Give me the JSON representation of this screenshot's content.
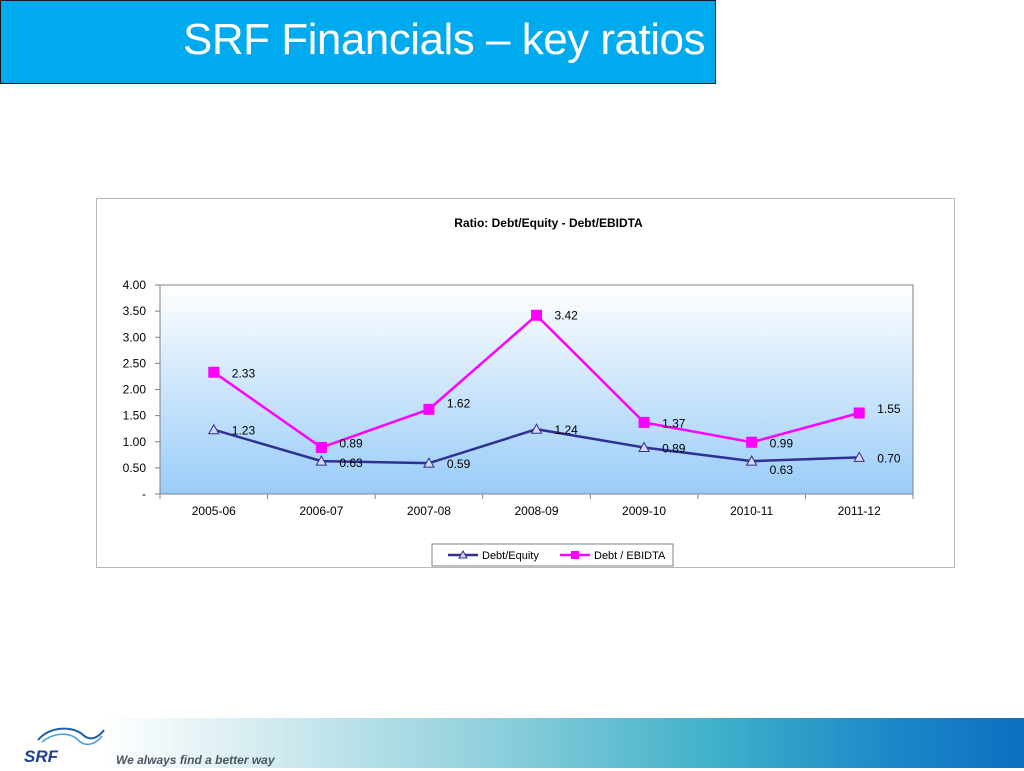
{
  "slide": {
    "title": "SRF Financials – key ratios",
    "tagline": "We always find a better way",
    "logo_text": "SRF"
  },
  "chart_data": {
    "type": "line",
    "title": "Ratio: Debt/Equity - Debt/EBIDTA",
    "xlabel": "",
    "ylabel": "",
    "categories": [
      "2005-06",
      "2006-07",
      "2007-08",
      "2008-09",
      "2009-10",
      "2010-11",
      "2011-12"
    ],
    "series": [
      {
        "name": "Debt/Equity",
        "values": [
          1.23,
          0.63,
          0.59,
          1.24,
          0.89,
          0.63,
          0.7
        ],
        "color": "#2e3192",
        "marker": "triangle"
      },
      {
        "name": "Debt / EBIDTA",
        "values": [
          2.33,
          0.89,
          1.62,
          3.42,
          1.37,
          0.99,
          1.55
        ],
        "color": "#ff00ff",
        "marker": "square"
      }
    ],
    "ylim": [
      0,
      4
    ],
    "yticks": [
      0,
      0.5,
      1,
      1.5,
      2,
      2.5,
      3,
      3.5,
      4
    ],
    "ytick_labels": [
      "-",
      "0.50",
      "1.00",
      "1.50",
      "2.00",
      "2.50",
      "3.00",
      "3.50",
      "4.00"
    ],
    "grid": false,
    "legend": "bottom",
    "plot_background": "gradient white to light blue"
  }
}
